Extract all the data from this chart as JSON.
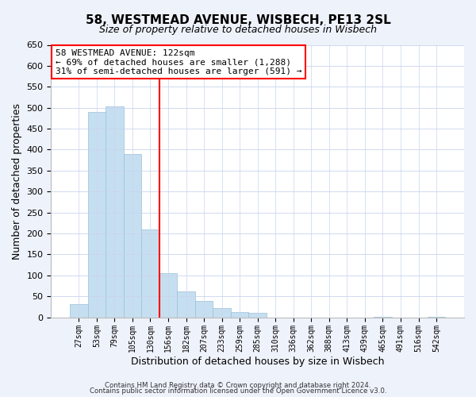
{
  "title": "58, WESTMEAD AVENUE, WISBECH, PE13 2SL",
  "subtitle": "Size of property relative to detached houses in Wisbech",
  "xlabel": "Distribution of detached houses by size in Wisbech",
  "ylabel": "Number of detached properties",
  "bar_labels": [
    "27sqm",
    "53sqm",
    "79sqm",
    "105sqm",
    "130sqm",
    "156sqm",
    "182sqm",
    "207sqm",
    "233sqm",
    "259sqm",
    "285sqm",
    "310sqm",
    "336sqm",
    "362sqm",
    "388sqm",
    "413sqm",
    "439sqm",
    "465sqm",
    "491sqm",
    "516sqm",
    "542sqm"
  ],
  "bar_values": [
    32,
    490,
    503,
    390,
    209,
    106,
    61,
    40,
    22,
    12,
    11,
    0,
    0,
    0,
    0,
    0,
    0,
    1,
    0,
    0,
    1
  ],
  "bar_color": "#c6dff0",
  "bar_edge_color": "#9bbfd8",
  "vline_color": "red",
  "ylim": [
    0,
    650
  ],
  "yticks": [
    0,
    50,
    100,
    150,
    200,
    250,
    300,
    350,
    400,
    450,
    500,
    550,
    600,
    650
  ],
  "annotation_title": "58 WESTMEAD AVENUE: 122sqm",
  "annotation_line1": "← 69% of detached houses are smaller (1,288)",
  "annotation_line2": "31% of semi-detached houses are larger (591) →",
  "footer1": "Contains HM Land Registry data © Crown copyright and database right 2024.",
  "footer2": "Contains public sector information licensed under the Open Government Licence v3.0.",
  "bg_color": "#eef2fb",
  "plot_bg_color": "#ffffff",
  "grid_color": "#c8d4ee"
}
